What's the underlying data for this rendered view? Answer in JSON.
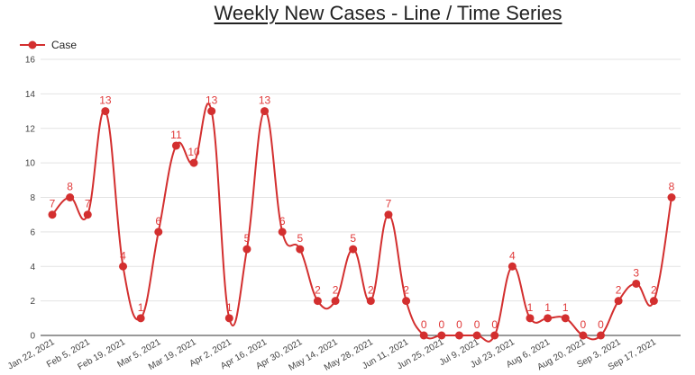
{
  "chart_data": {
    "type": "line",
    "title": "Weekly New Cases - Line / Time Series",
    "xlabel": "",
    "ylabel": "",
    "ylim": [
      0,
      16
    ],
    "yticks": [
      0,
      2,
      4,
      6,
      8,
      10,
      12,
      14,
      16
    ],
    "grid": true,
    "legend_position": "top-left",
    "line_color": "#d32f2f",
    "x_tick_labels": [
      "Jan 22, 2021",
      "Feb 5, 2021",
      "Feb 19, 2021",
      "Mar 5, 2021",
      "Mar 19, 2021",
      "Apr 2, 2021",
      "Apr 16, 2021",
      "Apr 30, 2021",
      "May 14, 2021",
      "May 28, 2021",
      "Jun 11, 2021",
      "Jun 25, 2021",
      "Jul 9, 2021",
      "Jul 23, 2021",
      "Aug 6, 2021",
      "Aug 20, 2021",
      "Sep 3, 2021",
      "Sep 17, 2021"
    ],
    "series": [
      {
        "name": "Case",
        "values": [
          7,
          8,
          7,
          13,
          4,
          1,
          6,
          11,
          10,
          13,
          1,
          5,
          13,
          6,
          5,
          2,
          2,
          5,
          2,
          7,
          2,
          0,
          0,
          0,
          0,
          0,
          4,
          1,
          1,
          1,
          0,
          0,
          2,
          3,
          2,
          8
        ]
      }
    ]
  }
}
